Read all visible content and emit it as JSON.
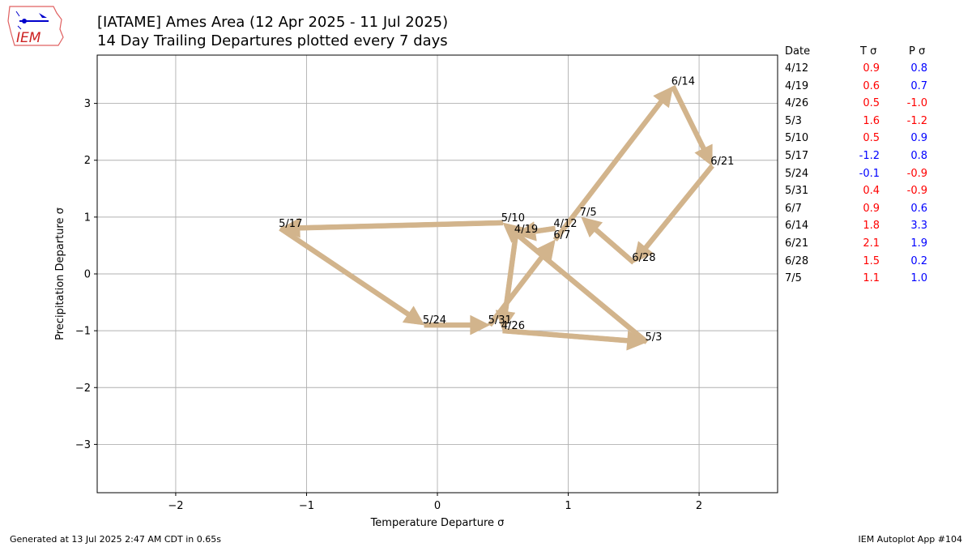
{
  "logo": {
    "text": "IEM",
    "icon": "iem-iowa-logo-icon"
  },
  "chart_data": {
    "type": "line",
    "title": "[IATAME] Ames Area (12 Apr 2025 - 11 Jul 2025)",
    "subtitle": "14 Day Trailing Departures plotted every 7 days",
    "xlabel": "Temperature Departure σ",
    "ylabel": "Precipitation Departure σ",
    "xlim": [
      -2.6,
      2.6
    ],
    "ylim": [
      -3.85,
      3.85
    ],
    "xticks": [
      -2,
      -1,
      0,
      1,
      2
    ],
    "yticks": [
      -3,
      -2,
      -1,
      0,
      1,
      2,
      3
    ],
    "xtick_labels": [
      "−2",
      "−1",
      "0",
      "1",
      "2"
    ],
    "ytick_labels": [
      "−3",
      "−2",
      "−1",
      "0",
      "1",
      "2",
      "3"
    ],
    "grid": true,
    "arrow_color": "#D2B48C",
    "points": [
      {
        "label": "4/12",
        "x": 0.9,
        "y": 0.8
      },
      {
        "label": "4/19",
        "x": 0.6,
        "y": 0.7
      },
      {
        "label": "4/26",
        "x": 0.5,
        "y": -1.0
      },
      {
        "label": "5/3",
        "x": 1.6,
        "y": -1.2
      },
      {
        "label": "5/10",
        "x": 0.5,
        "y": 0.9
      },
      {
        "label": "5/17",
        "x": -1.2,
        "y": 0.8
      },
      {
        "label": "5/24",
        "x": -0.1,
        "y": -0.9
      },
      {
        "label": "5/31",
        "x": 0.4,
        "y": -0.9
      },
      {
        "label": "6/7",
        "x": 0.9,
        "y": 0.6
      },
      {
        "label": "6/14",
        "x": 1.8,
        "y": 3.3
      },
      {
        "label": "6/21",
        "x": 2.1,
        "y": 1.9
      },
      {
        "label": "6/28",
        "x": 1.5,
        "y": 0.2
      },
      {
        "label": "7/5",
        "x": 1.1,
        "y": 1.0
      }
    ]
  },
  "table": {
    "headers": {
      "date": "Date",
      "t": "T σ",
      "p": "P σ"
    },
    "colors": {
      "positive": "#ff0000",
      "negative": "#0000ff",
      "p_positive": "#0000ff",
      "p_negative": "#ff0000"
    },
    "rows": [
      {
        "date": "4/12",
        "t": "0.9",
        "p": "0.8"
      },
      {
        "date": "4/19",
        "t": "0.6",
        "p": "0.7"
      },
      {
        "date": "4/26",
        "t": "0.5",
        "p": "-1.0"
      },
      {
        "date": "5/3",
        "t": "1.6",
        "p": "-1.2"
      },
      {
        "date": "5/10",
        "t": "0.5",
        "p": "0.9"
      },
      {
        "date": "5/17",
        "t": "-1.2",
        "p": "0.8"
      },
      {
        "date": "5/24",
        "t": "-0.1",
        "p": "-0.9"
      },
      {
        "date": "5/31",
        "t": "0.4",
        "p": "-0.9"
      },
      {
        "date": "6/7",
        "t": "0.9",
        "p": "0.6"
      },
      {
        "date": "6/14",
        "t": "1.8",
        "p": "3.3"
      },
      {
        "date": "6/21",
        "t": "2.1",
        "p": "1.9"
      },
      {
        "date": "6/28",
        "t": "1.5",
        "p": "0.2"
      },
      {
        "date": "7/5",
        "t": "1.1",
        "p": "1.0"
      }
    ]
  },
  "footer": {
    "generated": "Generated at 13 Jul 2025 2:47 AM CDT in 0.65s",
    "app": "IEM Autoplot App #104"
  }
}
